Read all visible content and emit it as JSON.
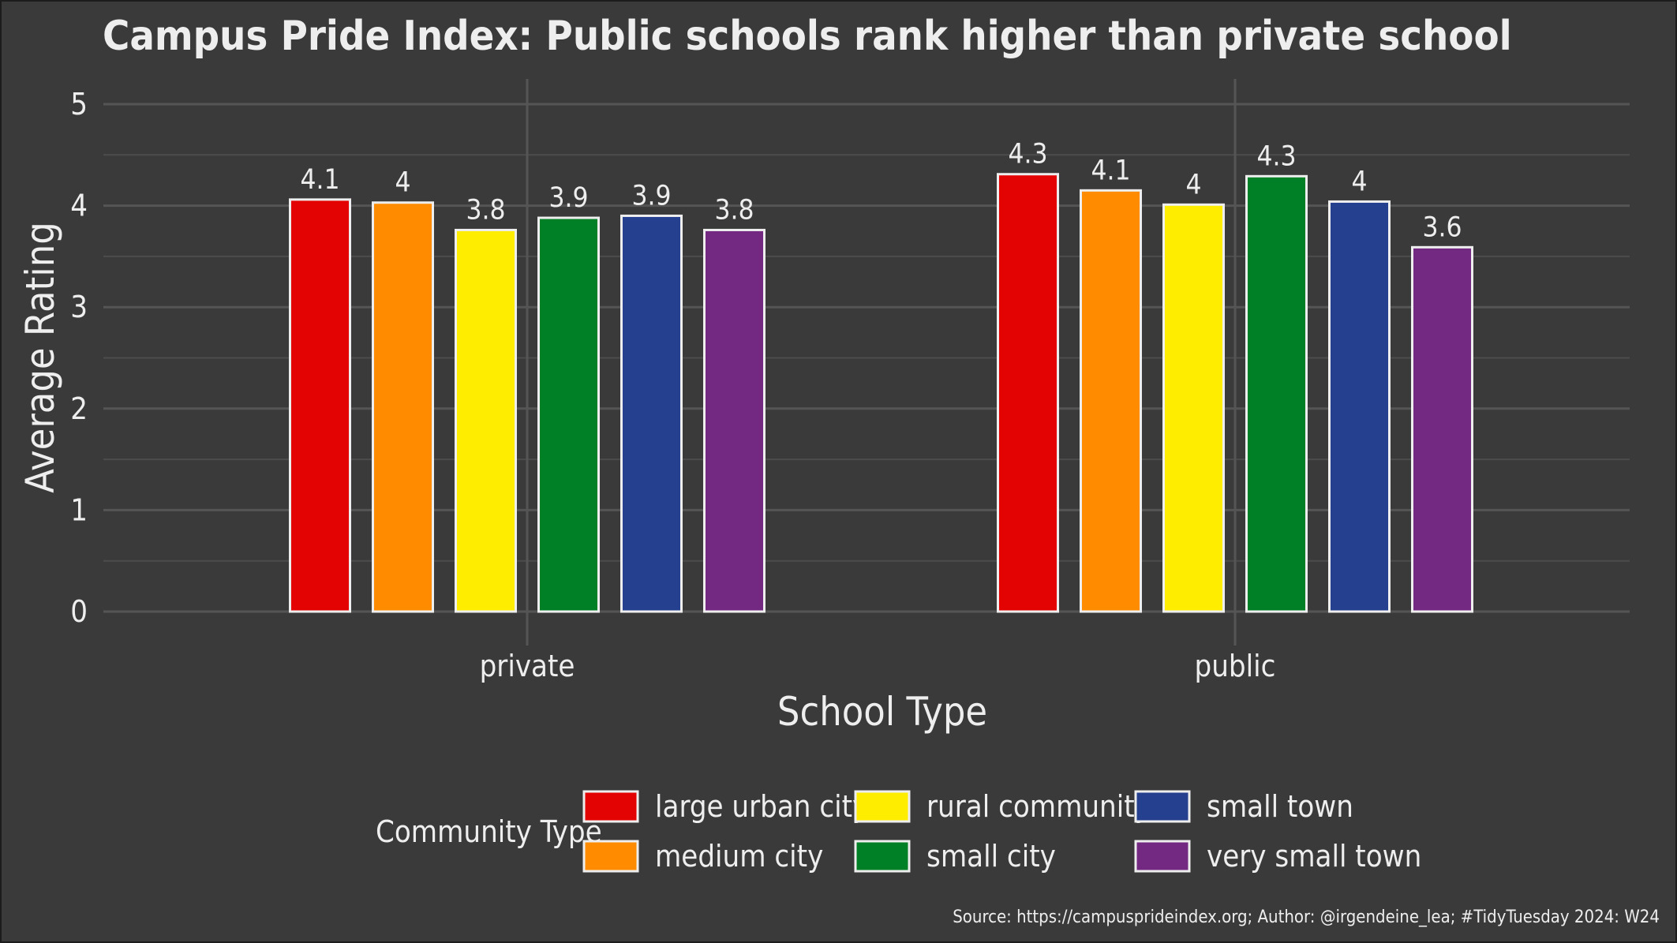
{
  "chart_data": {
    "type": "bar",
    "title": "Campus Pride Index: Public schools rank higher than private school",
    "xlabel": "School Type",
    "ylabel": "Average Rating",
    "ylim": [
      0,
      5
    ],
    "yticks": [
      "0",
      "1",
      "2",
      "3",
      "4",
      "5"
    ],
    "grid": true,
    "categories": [
      "private",
      "public"
    ],
    "series": [
      {
        "name": "large urban city",
        "color": "#e40303",
        "values": [
          4.06,
          4.31
        ],
        "labels": [
          "4.1",
          "4.3"
        ]
      },
      {
        "name": "medium city",
        "color": "#ff8c00",
        "values": [
          4.03,
          4.15
        ],
        "labels": [
          "4",
          "4.1"
        ]
      },
      {
        "name": "rural community",
        "color": "#ffed00",
        "values": [
          3.76,
          4.01
        ],
        "labels": [
          "3.8",
          "4"
        ]
      },
      {
        "name": "small city",
        "color": "#008026",
        "values": [
          3.88,
          4.29
        ],
        "labels": [
          "3.9",
          "4.3"
        ]
      },
      {
        "name": "small town",
        "color": "#24408e",
        "values": [
          3.9,
          4.04
        ],
        "labels": [
          "3.9",
          "4"
        ]
      },
      {
        "name": "very small town",
        "color": "#732982",
        "values": [
          3.76,
          3.59
        ],
        "labels": [
          "3.8",
          "3.6"
        ]
      }
    ],
    "legend": {
      "title": "Community Type",
      "position": "bottom"
    },
    "caption": "Source: https://campusprideindex.org; Author: @irgendeine_lea; #TidyTuesday 2024: W24"
  }
}
